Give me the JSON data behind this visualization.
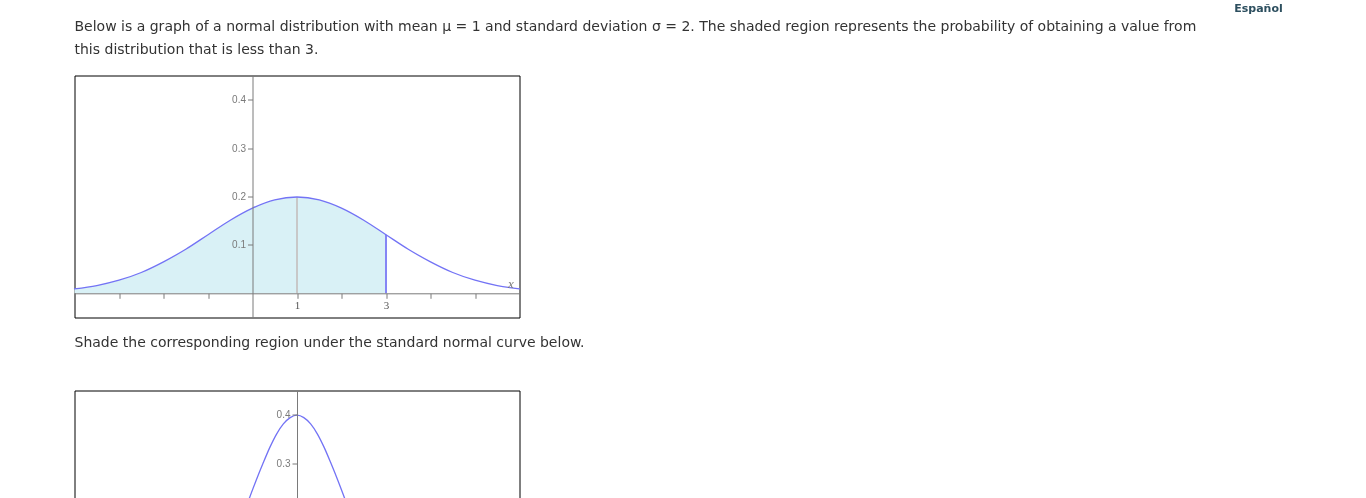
{
  "chart_data": [
    {
      "type": "line",
      "title": "Below is a graph of a normal distribution with mean μ = 1 and standard deviation σ = 2. The shaded region represents the probability of obtaining a value from this distribution that is less than 3.",
      "xlabel": "x",
      "x": [
        -4,
        -3.5,
        -3,
        -2.5,
        -2,
        -1.5,
        -1,
        -0.5,
        0,
        0.5,
        1,
        1.5,
        2,
        2.5,
        3,
        3.5,
        4,
        4.5,
        5,
        5.5,
        6
      ],
      "series": [
        {
          "type": "area",
          "color": "#d9f1f6",
          "x": [
            -4,
            -3.5,
            -3,
            -2.5,
            -2,
            -1.5,
            -1,
            -0.5,
            0,
            0.5,
            1,
            1.5,
            2,
            2.5,
            3
          ],
          "values": [
            0.009,
            0.016,
            0.027,
            0.043,
            0.065,
            0.091,
            0.121,
            0.151,
            0.176,
            0.193,
            0.199,
            0.193,
            0.176,
            0.151,
            0.121
          ]
        },
        {
          "color": "#7373f5",
          "values": [
            0.009,
            0.016,
            0.027,
            0.043,
            0.065,
            0.091,
            0.121,
            0.151,
            0.176,
            0.193,
            0.199,
            0.193,
            0.176,
            0.151,
            0.121,
            0.091,
            0.065,
            0.043,
            0.027,
            0.016,
            0.009
          ]
        }
      ],
      "xlim": [
        -4,
        6
      ],
      "ylim": [
        -0.05,
        0.45
      ],
      "xticks": [
        {
          "value": -3,
          "label": null
        },
        {
          "value": -2,
          "label": null
        },
        {
          "value": -1,
          "label": null
        },
        1,
        {
          "value": 2,
          "label": null
        },
        3,
        {
          "value": 4,
          "label": null
        },
        {
          "value": 5,
          "label": null
        }
      ],
      "yticks": [
        0.1,
        0.2,
        0.3,
        0.4
      ],
      "ref_lines": [
        {
          "axis": "x",
          "value": 1,
          "color": "#c8c8c8"
        },
        {
          "axis": "x",
          "value": 3,
          "color": "#8585f5"
        }
      ],
      "annotations": [
        "Español"
      ]
    },
    {
      "type": "line",
      "title": "Shade the corresponding region under the standard normal curve below.",
      "categories": [
        null,
        null,
        null,
        null,
        null,
        null,
        null,
        null,
        null,
        null,
        null,
        null,
        null,
        null,
        null
      ],
      "series": [
        {
          "color": "#7373f5",
          "values": [
            0.227,
            0.264,
            0.299,
            0.332,
            0.36,
            0.381,
            0.394,
            0.399,
            0.394,
            0.381,
            0.36,
            0.332,
            0.299,
            0.264,
            0.227
          ]
        }
      ],
      "ylim": [
        0.225,
        0.45
      ],
      "yticks": [
        0.3,
        0.4
      ],
      "tick_labels": "y"
    }
  ]
}
